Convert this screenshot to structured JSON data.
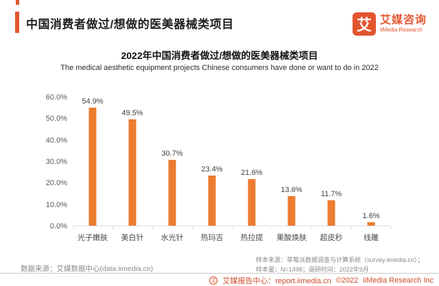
{
  "header": {
    "title": "中国消费者做过/想做的医美器械类项目",
    "brand": {
      "logo_char": "艾",
      "name_cn": "艾媒咨询",
      "name_en": "iiMedia Research"
    }
  },
  "chart_data": {
    "type": "bar",
    "title": "2022年中国消费者做过/想做的医美器械类项目",
    "subtitle": "The medical aesthetic equipment projects Chinese consumers have done or want to do in 2022",
    "categories": [
      "光子嫩肤",
      "美白针",
      "水光针",
      "热玛吉",
      "热拉提",
      "果酸焕肤",
      "超皮秒",
      "线雕"
    ],
    "values": [
      54.9,
      49.5,
      30.7,
      23.4,
      21.6,
      13.6,
      11.7,
      1.6
    ],
    "value_labels": [
      "54.9%",
      "49.5%",
      "30.7%",
      "23.4%",
      "21.6%",
      "13.6%",
      "11.7%",
      "1.6%"
    ],
    "y_ticks": [
      60,
      50,
      40,
      30,
      20,
      10,
      0
    ],
    "y_tick_labels": [
      "60.0%",
      "50.0%",
      "40.0%",
      "30.0%",
      "20.0%",
      "10.0%",
      "0.0%"
    ],
    "ylim": [
      0,
      60
    ],
    "grid": false,
    "legend": null,
    "bar_color": "#EC7C30"
  },
  "footer": {
    "sample_source": "样本来源：草莓派数据调查与计算系统（survey.iimedia.cn）；",
    "data_source": "数据来源：艾媒数据中心(data.iimedia.cn)",
    "sample_size": "样本量：N=1498；调研时间：2022年9月",
    "report_center": "艾媒报告中心：report.iimedia.cn",
    "copyright": "©2022",
    "company": "iiMedia Research Inc",
    "globe_icon_char": "艾"
  },
  "colors": {
    "brand_orange": "#E2552F",
    "bar_orange": "#EC7C30",
    "footer_red": "#CE4B28",
    "axis_gray": "#595959",
    "note_gray": "#8a8a8a"
  }
}
